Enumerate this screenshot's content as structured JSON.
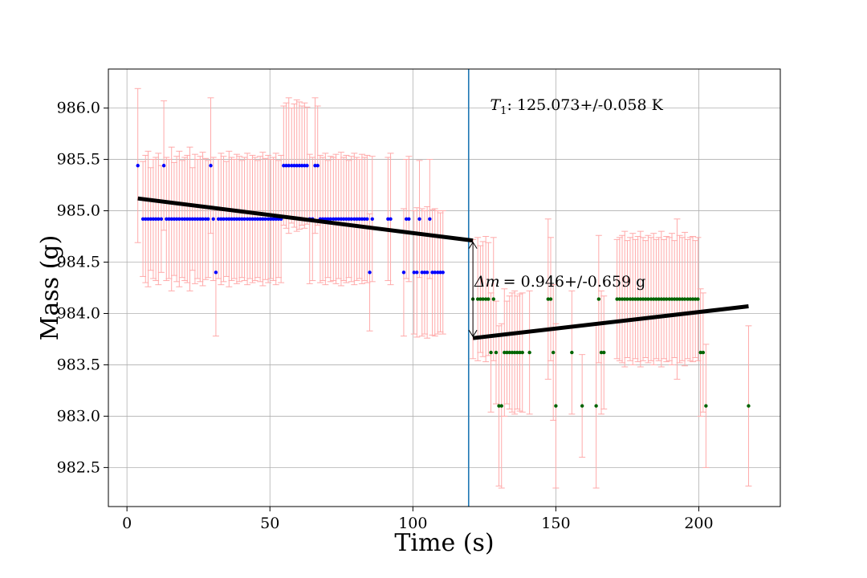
{
  "chart_data": {
    "type": "scatter",
    "xlabel": "Time (s)",
    "ylabel": "Mass (g)",
    "xlim": [
      -6.5,
      228.5
    ],
    "ylim": [
      982.12,
      986.38
    ],
    "x_ticks": [
      0,
      50,
      100,
      150,
      200
    ],
    "y_ticks": [
      982.5,
      983.0,
      983.5,
      984.0,
      984.5,
      985.0,
      985.5,
      986.0
    ],
    "y_tick_labels": [
      "982.5",
      "983.0",
      "983.5",
      "984.0",
      "984.5",
      "985.0",
      "985.5",
      "986.0"
    ],
    "x_tick_labels": [
      "0",
      "50",
      "100",
      "150",
      "200"
    ],
    "grid": true,
    "colors": {
      "before": "#0000ff",
      "after": "#006400",
      "errorbar": "#ffaaaa",
      "vline": "#1f77b4",
      "fit": "#000000"
    },
    "vertical_line_x": 119.5,
    "before": {
      "x": [
        3.8,
        5.6,
        6.5,
        7.4,
        8.3,
        9.2,
        10.1,
        11.0,
        12.0,
        12.9,
        13.8,
        14.7,
        15.6,
        16.5,
        17.4,
        18.3,
        19.3,
        20.2,
        21.1,
        22.0,
        22.9,
        23.8,
        24.7,
        25.6,
        26.5,
        27.5,
        28.4,
        29.3,
        30.2,
        31.1,
        32.0,
        32.9,
        33.8,
        34.8,
        35.7,
        36.6,
        37.5,
        38.4,
        39.3,
        40.2,
        41.1,
        42.1,
        43.0,
        43.9,
        44.8,
        45.7,
        46.6,
        47.5,
        48.4,
        49.4,
        50.3,
        51.2,
        52.1,
        53.0,
        53.9,
        54.8,
        55.7,
        56.6,
        57.6,
        58.5,
        59.4,
        60.3,
        61.2,
        62.1,
        63.0,
        63.9,
        64.9,
        65.8,
        66.7,
        67.6,
        68.5,
        69.4,
        70.3,
        71.2,
        72.2,
        73.1,
        74.0,
        74.9,
        75.8,
        76.7,
        77.6,
        78.5,
        79.5,
        80.4,
        81.3,
        82.2,
        83.1,
        84.0,
        84.9,
        85.8,
        91.3,
        92.2,
        96.8,
        97.7,
        98.6,
        100.4,
        101.4,
        102.3,
        103.2,
        104.1,
        105.0,
        105.9,
        106.8,
        107.7,
        108.7,
        109.6,
        110.5
      ],
      "y": [
        985.44,
        984.92,
        984.92,
        984.92,
        984.92,
        984.92,
        984.92,
        984.92,
        984.92,
        985.44,
        984.92,
        984.92,
        984.92,
        984.92,
        984.92,
        984.92,
        984.92,
        984.92,
        984.92,
        984.92,
        984.92,
        984.92,
        984.92,
        984.92,
        984.92,
        984.92,
        984.92,
        985.44,
        984.92,
        984.4,
        984.92,
        984.92,
        984.92,
        984.92,
        984.92,
        984.92,
        984.92,
        984.92,
        984.92,
        984.92,
        984.92,
        984.92,
        984.92,
        984.92,
        984.92,
        984.92,
        984.92,
        984.92,
        984.92,
        984.92,
        984.92,
        984.92,
        984.92,
        984.92,
        984.92,
        985.44,
        985.44,
        985.44,
        985.44,
        985.44,
        985.44,
        985.44,
        985.44,
        985.44,
        985.44,
        984.92,
        984.92,
        985.44,
        985.44,
        984.92,
        984.92,
        984.92,
        984.92,
        984.92,
        984.92,
        984.92,
        984.92,
        984.92,
        984.92,
        984.92,
        984.92,
        984.92,
        984.92,
        984.92,
        984.92,
        984.92,
        984.92,
        984.92,
        984.4,
        984.92,
        984.92,
        984.92,
        984.4,
        984.92,
        984.92,
        984.4,
        984.4,
        984.92,
        984.4,
        984.4,
        984.4,
        984.92,
        984.4,
        984.4,
        984.4,
        984.4,
        984.4
      ],
      "yerr": [
        0.75,
        0.56,
        0.62,
        0.66,
        0.5,
        0.58,
        0.6,
        0.64,
        0.52,
        0.63,
        0.6,
        0.58,
        0.7,
        0.55,
        0.61,
        0.66,
        0.57,
        0.6,
        0.62,
        0.7,
        0.5,
        0.63,
        0.58,
        0.61,
        0.65,
        0.59,
        0.57,
        0.66,
        0.6,
        0.62,
        0.58,
        0.64,
        0.61,
        0.56,
        0.66,
        0.6,
        0.58,
        0.63,
        0.61,
        0.57,
        0.6,
        0.64,
        0.58,
        0.62,
        0.6,
        0.57,
        0.61,
        0.65,
        0.59,
        0.62,
        0.58,
        0.6,
        0.64,
        0.57,
        0.62,
        0.58,
        0.61,
        0.66,
        0.56,
        0.6,
        0.64,
        0.62,
        0.58,
        0.61,
        0.57,
        0.63,
        0.6,
        0.66,
        0.58,
        0.62,
        0.6,
        0.64,
        0.57,
        0.61,
        0.6,
        0.63,
        0.58,
        0.65,
        0.6,
        0.62,
        0.57,
        0.61,
        0.64,
        0.6,
        0.58,
        0.63,
        0.6,
        0.62,
        0.57,
        0.61,
        0.6,
        0.64,
        0.62,
        0.58,
        0.61,
        0.6,
        0.63,
        0.57,
        0.62,
        0.6,
        0.64,
        0.58,
        0.61,
        0.62,
        0.6,
        0.58,
        0.6
      ]
    },
    "after": {
      "x": [
        121.0,
        122.7,
        123.6,
        124.5,
        125.5,
        126.4,
        127.3,
        128.2,
        129.1,
        130.1,
        131.0,
        132.0,
        132.9,
        133.8,
        134.7,
        135.6,
        136.5,
        137.4,
        138.3,
        140.8,
        147.3,
        148.2,
        149.1,
        150.0,
        155.6,
        159.2,
        164.1,
        165.0,
        165.9,
        166.8,
        171.4,
        172.3,
        173.2,
        174.1,
        175.0,
        176.0,
        176.9,
        177.8,
        178.7,
        179.6,
        180.5,
        181.4,
        182.3,
        183.3,
        184.2,
        185.1,
        186.0,
        186.9,
        187.8,
        188.7,
        189.7,
        190.6,
        191.5,
        192.4,
        193.3,
        194.2,
        195.1,
        196.1,
        197.0,
        197.9,
        198.8,
        199.7,
        200.6,
        201.5,
        202.5,
        217.4
      ],
      "y": [
        984.14,
        984.14,
        984.14,
        984.14,
        984.14,
        984.14,
        983.62,
        984.14,
        983.62,
        983.1,
        983.1,
        983.62,
        983.62,
        983.62,
        983.62,
        983.62,
        983.62,
        983.62,
        983.62,
        983.62,
        984.14,
        984.14,
        983.62,
        983.1,
        983.62,
        983.1,
        983.1,
        984.14,
        983.62,
        983.62,
        984.14,
        984.14,
        984.14,
        984.14,
        984.14,
        984.14,
        984.14,
        984.14,
        984.14,
        984.14,
        984.14,
        984.14,
        984.14,
        984.14,
        984.14,
        984.14,
        984.14,
        984.14,
        984.14,
        984.14,
        984.14,
        984.14,
        984.14,
        984.14,
        984.14,
        984.14,
        984.14,
        984.14,
        984.14,
        984.14,
        984.14,
        984.14,
        983.62,
        983.62,
        983.1,
        983.1
      ],
      "yerr": [
        0.58,
        0.6,
        0.52,
        0.56,
        0.61,
        0.55,
        0.58,
        0.6,
        0.5,
        0.78,
        0.8,
        0.62,
        0.5,
        0.55,
        0.58,
        0.6,
        0.55,
        0.57,
        0.58,
        0.6,
        0.78,
        0.6,
        0.66,
        0.8,
        0.6,
        0.5,
        0.8,
        0.62,
        0.6,
        0.55,
        0.58,
        0.6,
        0.62,
        0.66,
        0.57,
        0.6,
        0.64,
        0.58,
        0.61,
        0.66,
        0.6,
        0.57,
        0.62,
        0.6,
        0.64,
        0.58,
        0.6,
        0.66,
        0.58,
        0.61,
        0.6,
        0.64,
        0.57,
        0.78,
        0.62,
        0.6,
        0.65,
        0.58,
        0.6,
        0.61,
        0.57,
        0.6,
        0.62,
        0.58,
        0.6,
        0.78
      ]
    },
    "fit_before": [
      [
        3.8,
        985.12
      ],
      [
        121.0,
        984.71
      ]
    ],
    "fit_after": [
      [
        121.0,
        983.76
      ],
      [
        217.4,
        984.07
      ]
    ],
    "delta_arrow": {
      "x": 121.0,
      "y_top": 984.71,
      "y_bottom": 983.76
    },
    "annotations": {
      "t1_symbol": "T",
      "t1_sub": "1",
      "t1_text": ": 125.073+/-0.058 K",
      "t1_pos": [
        127.0,
        985.98
      ],
      "dm_symbol": "Δm",
      "dm_text": "= 0.946+/-0.659 g",
      "dm_pos": [
        121.5,
        984.26
      ]
    }
  }
}
